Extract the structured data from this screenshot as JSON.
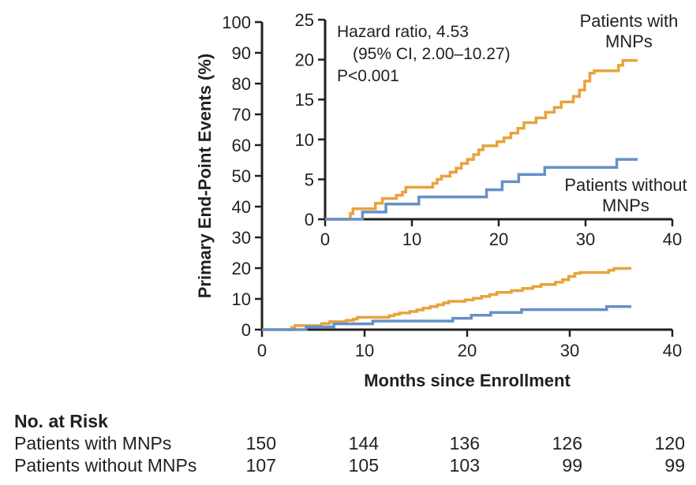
{
  "chart_data": {
    "type": "line",
    "style": "kaplan-meier-step",
    "title": "",
    "xlabel": "Months since Enrollment",
    "ylabel": "Primary End-Point Events (%)",
    "main_axis": {
      "xlim": [
        0,
        40
      ],
      "ylim": [
        0,
        100
      ],
      "xticks": [
        0,
        10,
        20,
        30,
        40
      ],
      "yticks": [
        0,
        10,
        20,
        30,
        40,
        50,
        60,
        70,
        80,
        90,
        100
      ],
      "grid": false
    },
    "inset_axis": {
      "xlim": [
        0,
        40
      ],
      "ylim": [
        0,
        25
      ],
      "xticks": [
        0,
        10,
        20,
        30,
        40
      ],
      "yticks": [
        0,
        5,
        10,
        15,
        20,
        25
      ],
      "grid": false
    },
    "annotation": {
      "line1": "Hazard ratio, 4.53",
      "line2": "(95% CI, 2.00–10.27)",
      "line3": "P<0.001"
    },
    "follow_up_end_months": 36,
    "axis_color": "#231F20",
    "series": [
      {
        "name": "Patients with MNPs",
        "label_line1": "Patients with",
        "label_line2": "MNPs",
        "color": "#E8A33C",
        "points": [
          [
            2.9,
            0.7
          ],
          [
            3.2,
            1.3
          ],
          [
            5.8,
            2.0
          ],
          [
            6.6,
            2.6
          ],
          [
            8.2,
            3.0
          ],
          [
            8.9,
            3.4
          ],
          [
            9.3,
            4.0
          ],
          [
            12.4,
            4.5
          ],
          [
            12.9,
            5.0
          ],
          [
            13.4,
            5.4
          ],
          [
            14.4,
            5.9
          ],
          [
            15.1,
            6.4
          ],
          [
            15.7,
            7.0
          ],
          [
            16.4,
            7.5
          ],
          [
            17.1,
            8.1
          ],
          [
            17.7,
            8.7
          ],
          [
            18.2,
            9.2
          ],
          [
            19.8,
            9.7
          ],
          [
            20.6,
            10.2
          ],
          [
            21.4,
            10.8
          ],
          [
            22.2,
            11.4
          ],
          [
            22.9,
            12.1
          ],
          [
            24.3,
            12.7
          ],
          [
            25.4,
            13.4
          ],
          [
            26.4,
            14.0
          ],
          [
            27.2,
            14.7
          ],
          [
            28.6,
            15.4
          ],
          [
            29.3,
            16.2
          ],
          [
            29.9,
            17.3
          ],
          [
            30.5,
            18.3
          ],
          [
            31.0,
            18.6
          ],
          [
            33.8,
            19.3
          ],
          [
            34.3,
            19.9
          ]
        ]
      },
      {
        "name": "Patients without MNPs",
        "label_line1": "Patients without",
        "label_line2": "MNPs",
        "color": "#6690C8",
        "points": [
          [
            4.3,
            0.9
          ],
          [
            7.0,
            1.9
          ],
          [
            10.8,
            2.8
          ],
          [
            18.6,
            3.7
          ],
          [
            20.4,
            4.7
          ],
          [
            22.3,
            5.6
          ],
          [
            25.3,
            6.5
          ],
          [
            33.6,
            7.5
          ]
        ]
      }
    ]
  },
  "risk_table": {
    "title": "No. at Risk",
    "rows": [
      {
        "label": "Patients with MNPs",
        "values": [
          "150",
          "144",
          "136",
          "126",
          "120"
        ]
      },
      {
        "label": "Patients without MNPs",
        "values": [
          "107",
          "105",
          "103",
          "99",
          "99"
        ]
      }
    ]
  }
}
